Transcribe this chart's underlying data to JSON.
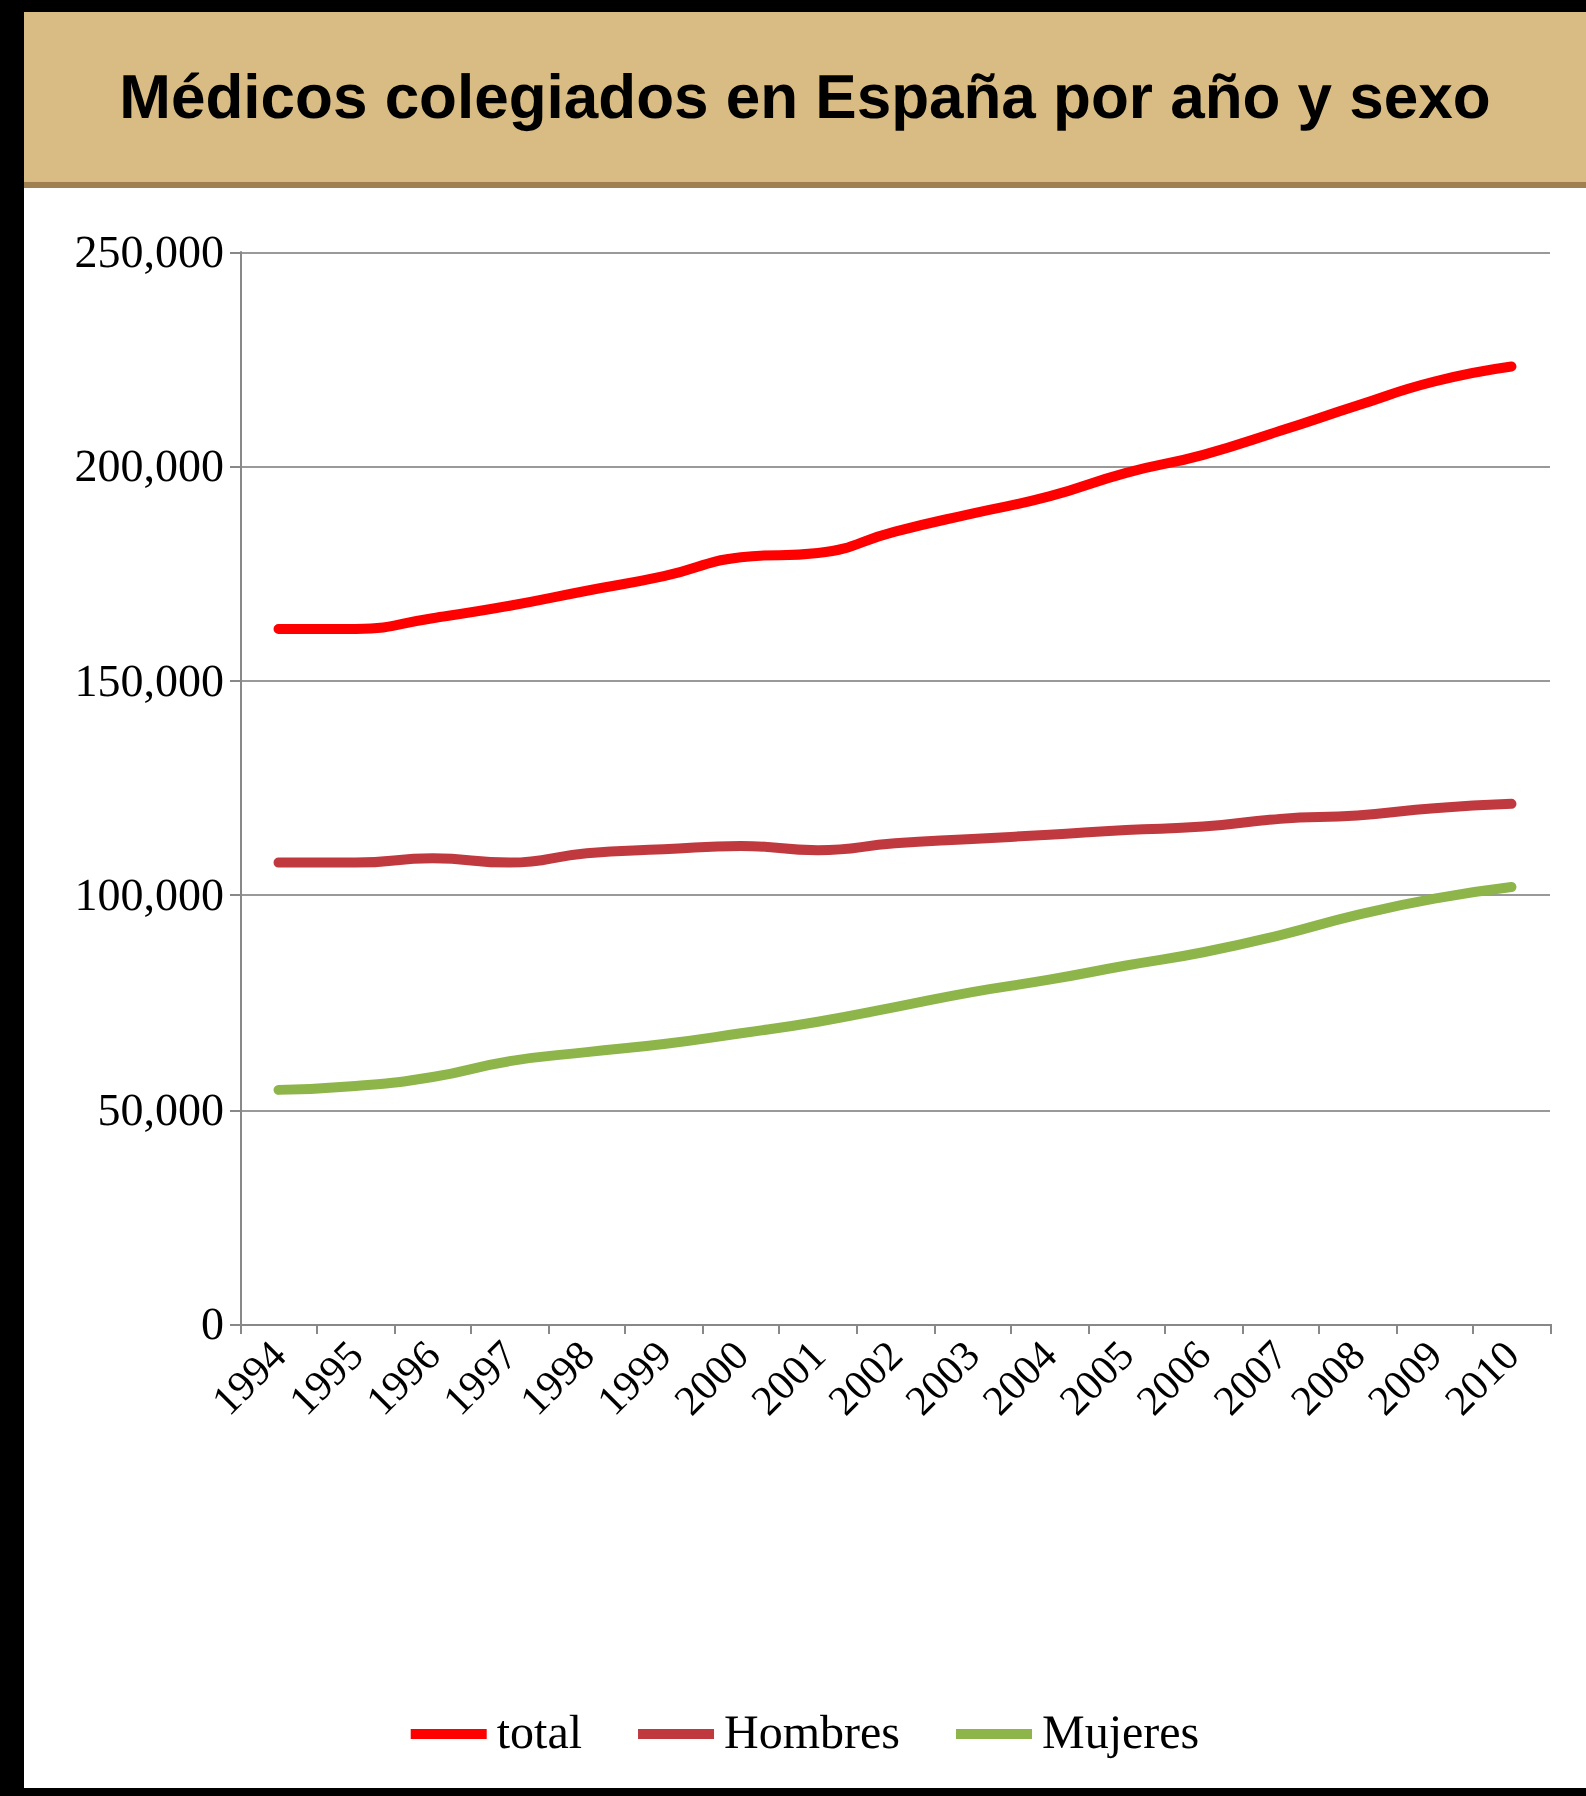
{
  "chart_data": {
    "type": "line",
    "title": "Médicos colegiados en España por año y sexo",
    "categories": [
      "1994",
      "1995",
      "1996",
      "1997",
      "1998",
      "1999",
      "2000",
      "2001",
      "2002",
      "2003",
      "2004",
      "2005",
      "2006",
      "2007",
      "2008",
      "2009",
      "2010"
    ],
    "series": [
      {
        "name": "total",
        "color": "#ff0000",
        "values": [
          162100,
          162100,
          164600,
          167500,
          171000,
          174400,
          178800,
          179800,
          184800,
          189000,
          193000,
          198500,
          202700,
          208300,
          214200,
          219800,
          223300
        ]
      },
      {
        "name": "Hombres",
        "color": "#c0393f",
        "values": [
          107600,
          107600,
          108600,
          107600,
          109800,
          110700,
          111500,
          110500,
          112100,
          113100,
          114100,
          115200,
          116000,
          117800,
          118600,
          120300,
          121300
        ]
      },
      {
        "name": "Mujeres",
        "color": "#8db54a",
        "values": [
          54600,
          55500,
          57600,
          61300,
          63400,
          65300,
          67800,
          70500,
          73900,
          77400,
          80300,
          83600,
          86700,
          90700,
          95400,
          99200,
          101900
        ]
      }
    ],
    "ylim": [
      0,
      250000
    ],
    "yticks": [
      0,
      {
        "value": 50000,
        "label": "50,000"
      },
      {
        "value": 100000,
        "label": "100,000"
      },
      {
        "value": 150000,
        "label": "150,000"
      },
      {
        "value": 200000,
        "label": "200,000"
      },
      {
        "value": 250000,
        "label": "250,000"
      }
    ],
    "grid": "y",
    "legend": "bottom",
    "marker": "none",
    "line_style": "solid"
  }
}
